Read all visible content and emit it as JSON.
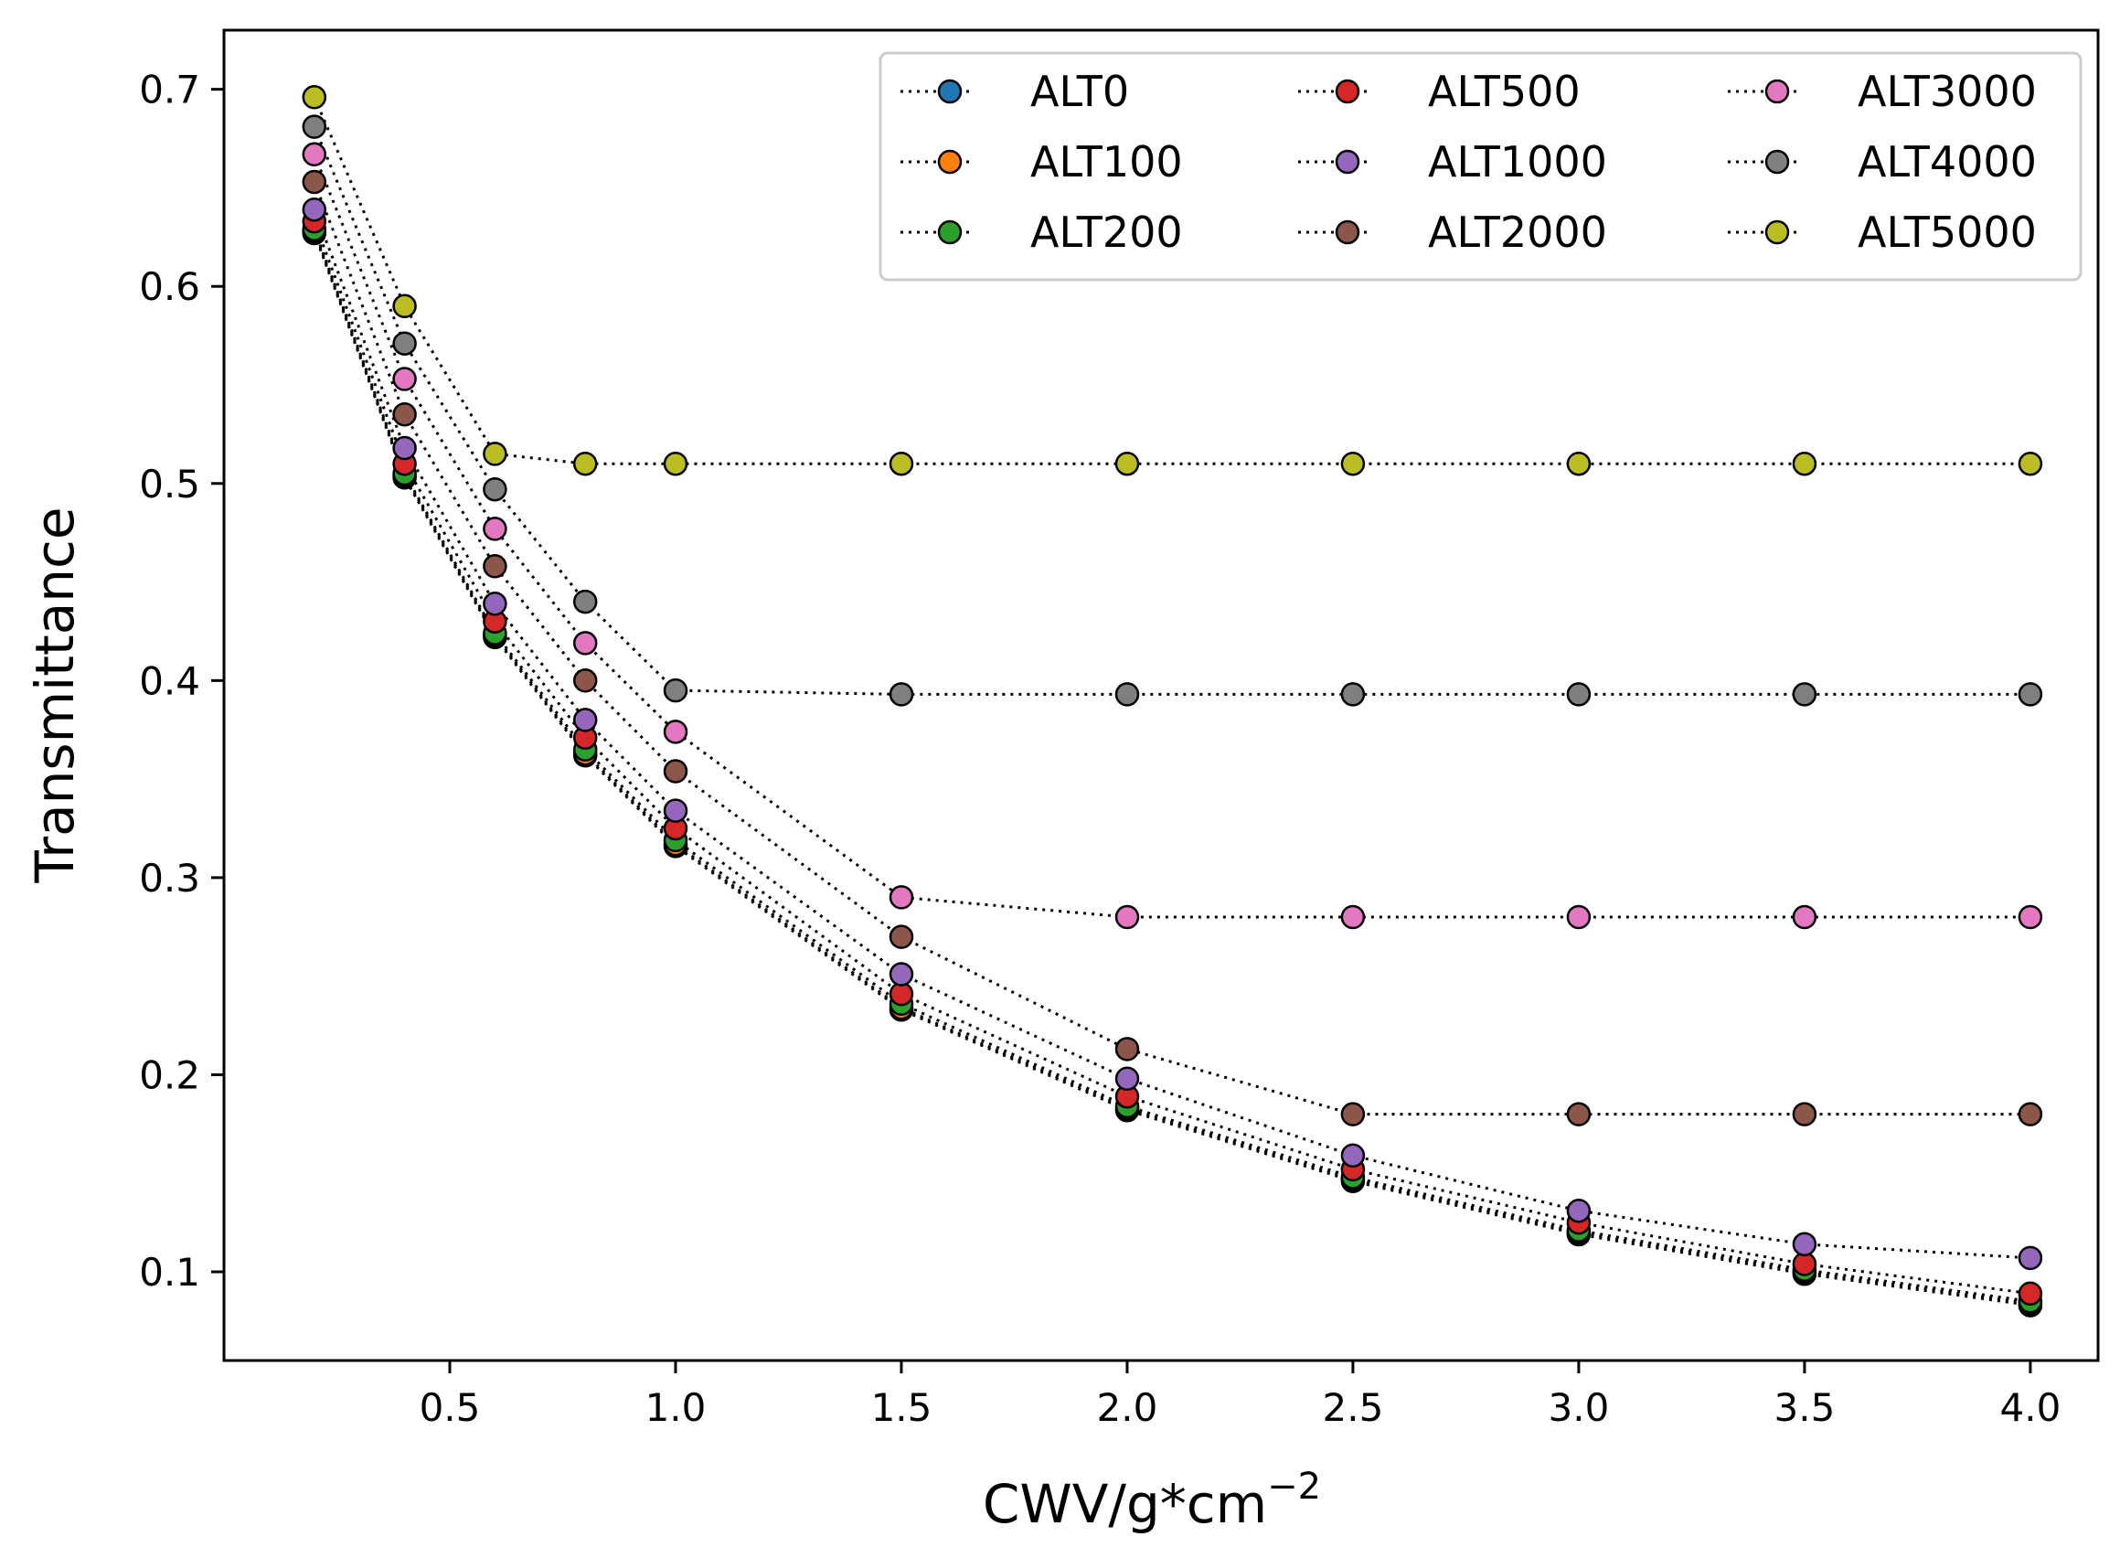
{
  "chart_data": {
    "type": "line",
    "xlabel": "CWV/g*cm",
    "xlabel_superscript": "−2",
    "ylabel": "Transmittance",
    "x": [
      0.2,
      0.4,
      0.6,
      0.8,
      1.0,
      1.5,
      2.0,
      2.5,
      3.0,
      3.5,
      4.0
    ],
    "xlim": [
      0.0,
      4.15
    ],
    "ylim": [
      0.055,
      0.73
    ],
    "xticks": [
      0.5,
      1.0,
      1.5,
      2.0,
      2.5,
      3.0,
      3.5,
      4.0
    ],
    "xtick_labels": [
      "0.5",
      "1.0",
      "1.5",
      "2.0",
      "2.5",
      "3.0",
      "3.5",
      "4.0"
    ],
    "yticks": [
      0.1,
      0.2,
      0.3,
      0.4,
      0.5,
      0.6,
      0.7
    ],
    "ytick_labels": [
      "0.1",
      "0.2",
      "0.3",
      "0.4",
      "0.5",
      "0.6",
      "0.7"
    ],
    "line_style": "dotted",
    "line_color": "#000000",
    "marker": "circle",
    "legend_position": "top-right",
    "legend_columns": 3,
    "series": [
      {
        "name": "ALT0",
        "color": "#1f77b4",
        "values": [
          0.627,
          0.503,
          0.422,
          0.362,
          0.316,
          0.233,
          0.182,
          0.146,
          0.119,
          0.099,
          0.083
        ]
      },
      {
        "name": "ALT100",
        "color": "#ff7f0e",
        "values": [
          0.628,
          0.504,
          0.423,
          0.363,
          0.317,
          0.234,
          0.183,
          0.147,
          0.12,
          0.1,
          0.084
        ]
      },
      {
        "name": "ALT200",
        "color": "#2ca02c",
        "values": [
          0.629,
          0.505,
          0.424,
          0.365,
          0.319,
          0.236,
          0.184,
          0.148,
          0.121,
          0.101,
          0.085
        ]
      },
      {
        "name": "ALT500",
        "color": "#d62728",
        "values": [
          0.633,
          0.51,
          0.43,
          0.371,
          0.325,
          0.241,
          0.189,
          0.152,
          0.125,
          0.104,
          0.089
        ]
      },
      {
        "name": "ALT1000",
        "color": "#9467bd",
        "values": [
          0.639,
          0.518,
          0.439,
          0.38,
          0.334,
          0.251,
          0.198,
          0.159,
          0.131,
          0.114,
          0.107
        ]
      },
      {
        "name": "ALT2000",
        "color": "#8c564b",
        "values": [
          0.653,
          0.535,
          0.458,
          0.4,
          0.354,
          0.27,
          0.213,
          0.18,
          0.18,
          0.18,
          0.18
        ]
      },
      {
        "name": "ALT3000",
        "color": "#e377c2",
        "values": [
          0.667,
          0.553,
          0.477,
          0.419,
          0.374,
          0.29,
          0.28,
          0.28,
          0.28,
          0.28,
          0.28
        ]
      },
      {
        "name": "ALT4000",
        "color": "#7f7f7f",
        "values": [
          0.681,
          0.571,
          0.497,
          0.44,
          0.395,
          0.393,
          0.393,
          0.393,
          0.393,
          0.393,
          0.393
        ]
      },
      {
        "name": "ALT5000",
        "color": "#bcbd22",
        "values": [
          0.696,
          0.59,
          0.515,
          0.51,
          0.51,
          0.51,
          0.51,
          0.51,
          0.51,
          0.51,
          0.51
        ]
      }
    ]
  }
}
